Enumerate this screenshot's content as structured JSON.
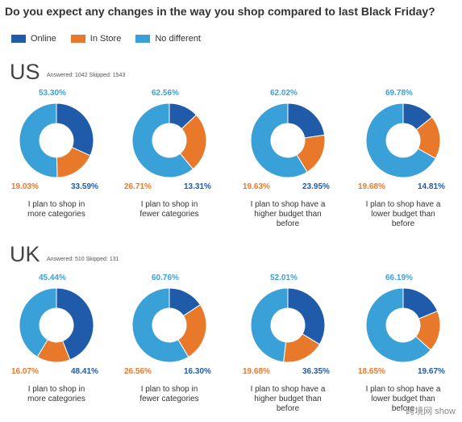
{
  "title": "Do you expect any changes in the way you shop compared to last Black Friday?",
  "legend": [
    {
      "name": "Online",
      "color": "#1f5ba8"
    },
    {
      "name": "In Store",
      "color": "#e8792a"
    },
    {
      "name": "No different",
      "color": "#3aa0d8"
    }
  ],
  "colors": {
    "online": "#1f5ba8",
    "instore": "#e8792a",
    "nodiff": "#3aa0d8"
  },
  "sections": [
    {
      "country": "US",
      "answered": "Answered: 1042  Skipped: 1543",
      "charts": [
        {
          "label_line1": "I plan to shop in",
          "label_line2": "more categories",
          "label_line3": "",
          "online": "33.59%",
          "instore": "19.03%",
          "nodiff": "53.30%"
        },
        {
          "label_line1": "I plan to shop in",
          "label_line2": "fewer categories",
          "label_line3": "",
          "online": "13.31%",
          "instore": "26.71%",
          "nodiff": "62.56%"
        },
        {
          "label_line1": "I plan to shop have a",
          "label_line2": "higher budget than",
          "label_line3": "before",
          "online": "23.95%",
          "instore": "19.63%",
          "nodiff": "62.02%"
        },
        {
          "label_line1": "I plan to shop have a",
          "label_line2": "lower budget than",
          "label_line3": "before",
          "online": "14.81%",
          "instore": "19.68%",
          "nodiff": "69.78%"
        }
      ]
    },
    {
      "country": "UK",
      "answered": "Answered: 510  Skipped: 131",
      "charts": [
        {
          "label_line1": "I plan to shop in",
          "label_line2": "more categories",
          "label_line3": "",
          "online": "48.41%",
          "instore": "16.07%",
          "nodiff": "45.44%"
        },
        {
          "label_line1": "I plan to shop in",
          "label_line2": "fewer categories",
          "label_line3": "",
          "online": "16.30%",
          "instore": "26.56%",
          "nodiff": "60.76%"
        },
        {
          "label_line1": "I plan to shop have a",
          "label_line2": "higher budget than",
          "label_line3": "before",
          "online": "36.35%",
          "instore": "19.68%",
          "nodiff": "52.01%"
        },
        {
          "label_line1": "I plan to shop have a",
          "label_line2": "lower budget than",
          "label_line3": "before",
          "online": "19.67%",
          "instore": "18.65%",
          "nodiff": "66.19%"
        }
      ]
    }
  ],
  "watermark": "跨境网 show",
  "chart_data": [
    {
      "type": "pie",
      "title": "I plan to shop in more categories",
      "group": "US",
      "categories": [
        "Online",
        "In Store",
        "No different"
      ],
      "values": [
        33.59,
        19.03,
        53.3
      ]
    },
    {
      "type": "pie",
      "title": "I plan to shop in fewer categories",
      "group": "US",
      "categories": [
        "Online",
        "In Store",
        "No different"
      ],
      "values": [
        13.31,
        26.71,
        62.56
      ]
    },
    {
      "type": "pie",
      "title": "I plan to shop have a higher budget than before",
      "group": "US",
      "categories": [
        "Online",
        "In Store",
        "No different"
      ],
      "values": [
        23.95,
        19.63,
        62.02
      ]
    },
    {
      "type": "pie",
      "title": "I plan to shop have a lower budget than before",
      "group": "US",
      "categories": [
        "Online",
        "In Store",
        "No different"
      ],
      "values": [
        14.81,
        19.68,
        69.78
      ]
    },
    {
      "type": "pie",
      "title": "I plan to shop in more categories",
      "group": "UK",
      "categories": [
        "Online",
        "In Store",
        "No different"
      ],
      "values": [
        48.41,
        16.07,
        45.44
      ]
    },
    {
      "type": "pie",
      "title": "I plan to shop in fewer categories",
      "group": "UK",
      "categories": [
        "Online",
        "In Store",
        "No different"
      ],
      "values": [
        16.3,
        26.56,
        60.76
      ]
    },
    {
      "type": "pie",
      "title": "I plan to shop have a higher budget than before",
      "group": "UK",
      "categories": [
        "Online",
        "In Store",
        "No different"
      ],
      "values": [
        36.35,
        19.68,
        52.01
      ]
    },
    {
      "type": "pie",
      "title": "I plan to shop have a lower budget than before",
      "group": "UK",
      "categories": [
        "Online",
        "In Store",
        "No different"
      ],
      "values": [
        19.67,
        18.65,
        66.19
      ]
    }
  ]
}
